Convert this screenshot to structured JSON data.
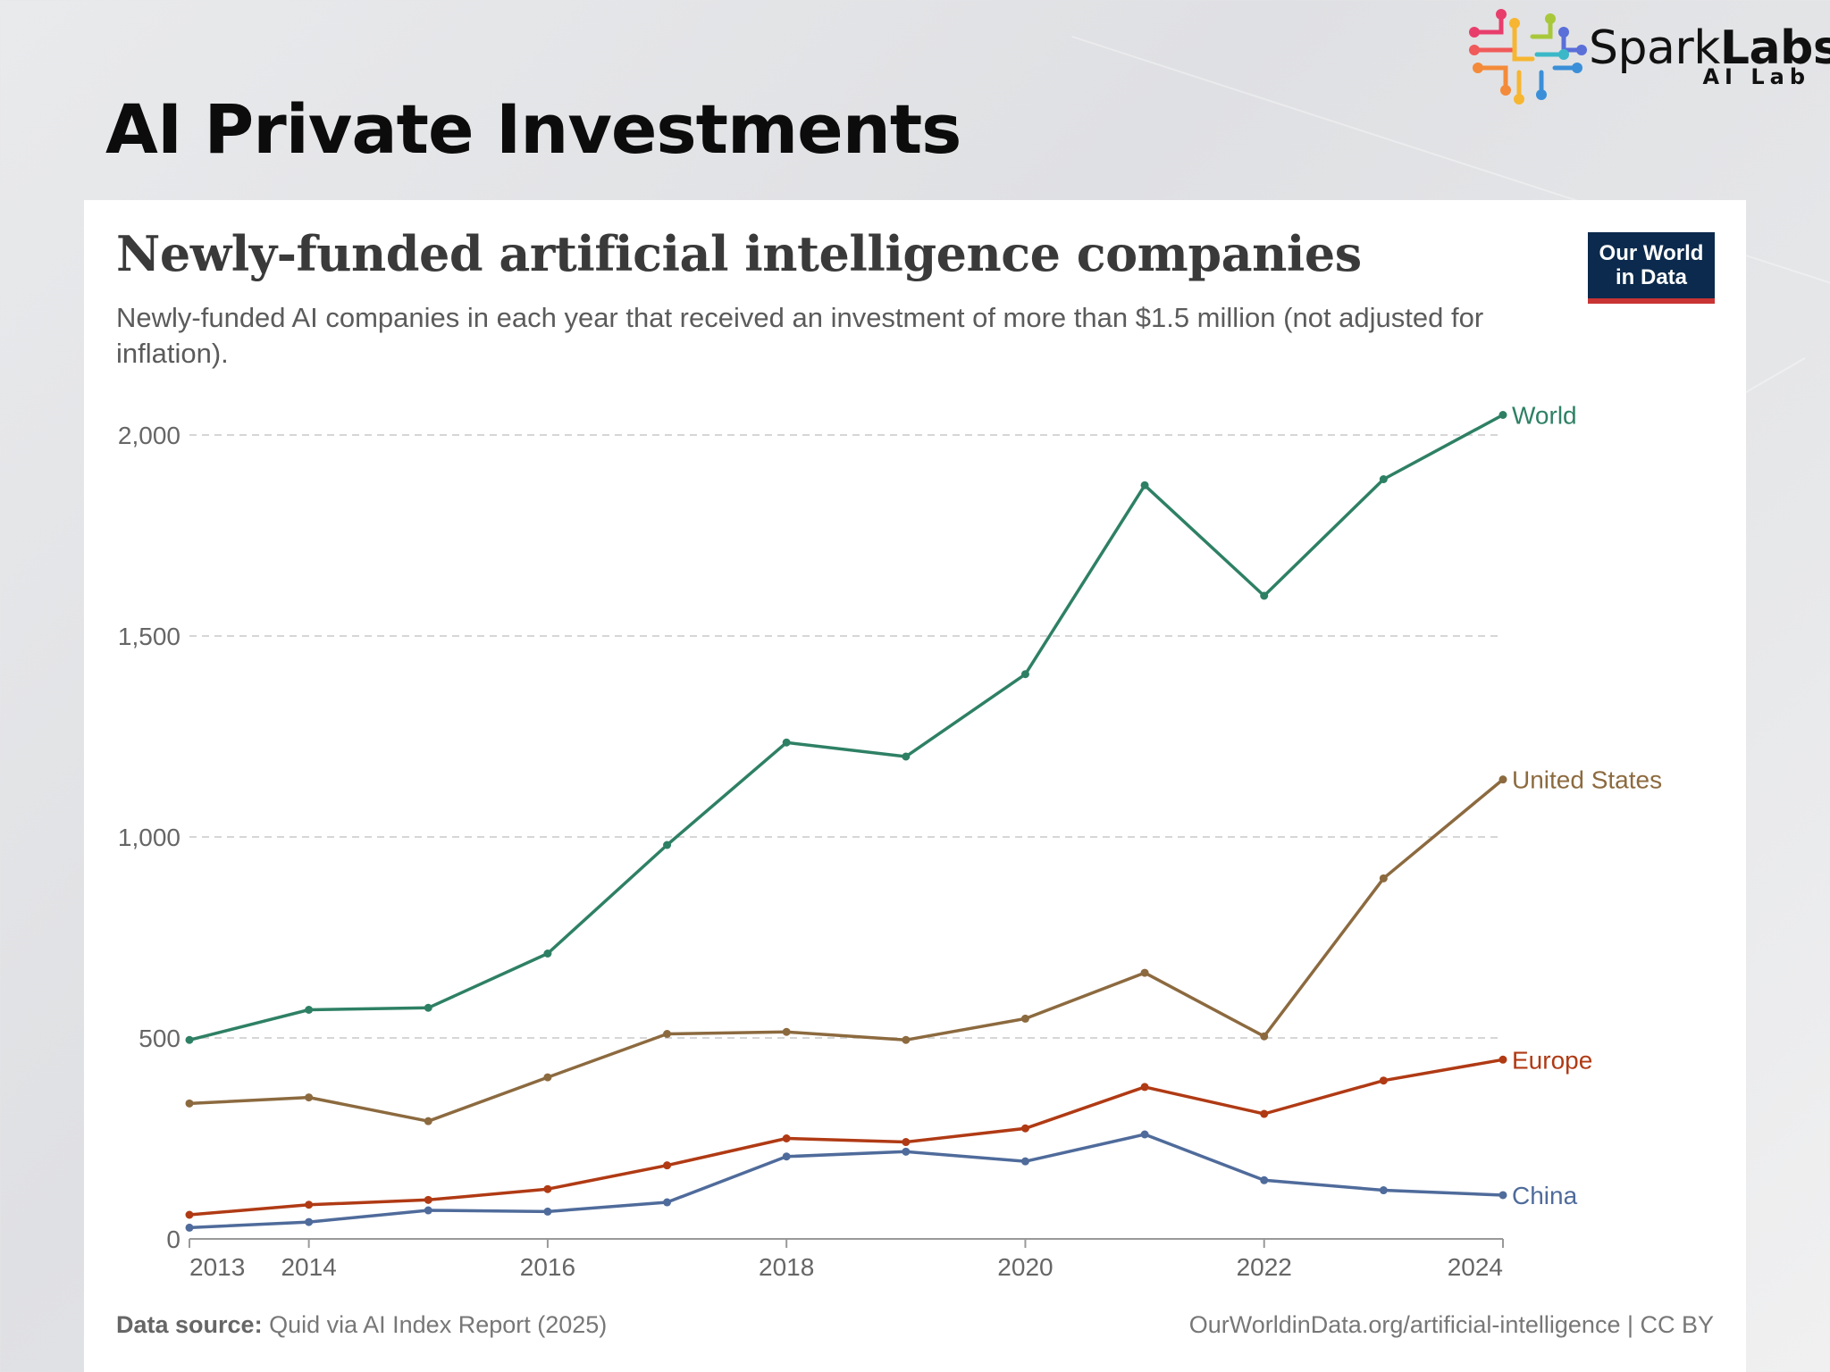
{
  "slide": {
    "title": "AI Private Investments",
    "brand_name_light": "Spark",
    "brand_name_bold": "Labs",
    "brand_sub": "AI Lab"
  },
  "chart_data": {
    "type": "line",
    "title": "Newly-funded artificial intelligence companies",
    "subtitle": "Newly-funded AI companies in each year that received an investment of more than $1.5 million (not adjusted for inflation).",
    "x": [
      2013,
      2014,
      2015,
      2016,
      2017,
      2018,
      2019,
      2020,
      2021,
      2022,
      2023,
      2024
    ],
    "x_tick_labels": [
      "2013",
      "2014",
      "2016",
      "2018",
      "2020",
      "2022",
      "2024"
    ],
    "y_tick_labels": [
      "0",
      "500",
      "1,000",
      "1,500",
      "2,000"
    ],
    "ylim": [
      0,
      2050
    ],
    "grid": true,
    "legend": "inline-right",
    "series": [
      {
        "name": "World",
        "color": "#2e8065",
        "values": [
          495,
          570,
          575,
          710,
          980,
          1235,
          1200,
          1405,
          1875,
          1600,
          1890,
          2050
        ]
      },
      {
        "name": "United States",
        "color": "#8c6a3f",
        "values": [
          337,
          352,
          293,
          402,
          510,
          515,
          495,
          548,
          662,
          504,
          897,
          1143
        ]
      },
      {
        "name": "Europe",
        "color": "#b03a14",
        "values": [
          60,
          85,
          97,
          124,
          183,
          250,
          241,
          275,
          378,
          311,
          394,
          446
        ]
      },
      {
        "name": "China",
        "color": "#4f6b9b",
        "values": [
          28,
          42,
          71,
          68,
          91,
          205,
          217,
          193,
          260,
          146,
          121,
          109
        ]
      }
    ],
    "source_label": "Data source:",
    "source_text": "Quid via AI Index Report (2025)",
    "attribution": "OurWorldinData.org/artificial-intelligence | CC BY"
  },
  "logo": {
    "line1": "Our World",
    "line2": "in Data"
  }
}
